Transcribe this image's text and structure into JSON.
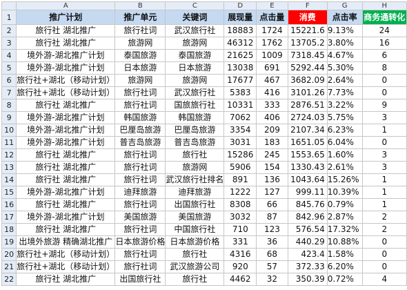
{
  "columns": [
    "A",
    "B",
    "C",
    "D",
    "E",
    "F",
    "G",
    "H"
  ],
  "header": [
    "推广计划",
    "推广单元",
    "关键词",
    "展现量",
    "点击量",
    "消费",
    "点击率",
    "商务通转化"
  ],
  "header_colors": {
    "default": "#c5d9f1",
    "消费": "#ff0000",
    "商务通转化": "#00b050",
    "special_text": "#ffffff"
  },
  "rows": [
    [
      "旅行社 湖北推广",
      "旅行社词",
      "武汉旅行社",
      "18883",
      "1724",
      "15221.6",
      "9.13%",
      "24"
    ],
    [
      "旅行社 湖北推广",
      "旅游网",
      "旅游网",
      "46312",
      "1762",
      "13705.2",
      "3.80%",
      "16"
    ],
    [
      "境外游-湖北推广计划",
      "泰国旅游",
      "泰国旅游",
      "21625",
      "1009",
      "7318.45",
      "4.67%",
      "6"
    ],
    [
      "境外游-湖北推广计划",
      "日本旅游",
      "日本旅游",
      "13038",
      "691",
      "5292.44",
      "5.30%",
      "8"
    ],
    [
      "旅行社+湖北（移动计划）",
      "旅游网",
      "旅游网",
      "17677",
      "467",
      "3682.09",
      "2.64%",
      "0"
    ],
    [
      "旅行社+湖北（移动计划）",
      "旅行社词",
      "武汉旅行社",
      "5383",
      "416",
      "3101.26",
      "7.73%",
      "0"
    ],
    [
      "旅行社 湖北推广",
      "旅行社词",
      "国旅旅行社",
      "10331",
      "333",
      "2876.51",
      "3.22%",
      "9"
    ],
    [
      "境外游-湖北推广计划",
      "韩国旅游",
      "韩国旅游",
      "7062",
      "406",
      "2724.03",
      "5.75%",
      "3"
    ],
    [
      "境外游-湖北推广计划",
      "巴厘岛旅游",
      "巴厘岛旅游",
      "3354",
      "209",
      "2107.34",
      "6.23%",
      "1"
    ],
    [
      "境外游-湖北推广计划",
      "普吉岛旅游",
      "普吉岛旅游",
      "3031",
      "183",
      "1651.05",
      "6.04%",
      "0"
    ],
    [
      "旅行社 湖北推广",
      "旅行社词",
      "旅行社",
      "15286",
      "245",
      "1553.65",
      "1.60%",
      "3"
    ],
    [
      "旅行社 湖北推广",
      "旅行社词",
      "旅游网",
      "5906",
      "154",
      "1330.43",
      "2.61%",
      "3"
    ],
    [
      "旅行社 湖北推广",
      "旅行社词",
      "武汉旅行社排名",
      "891",
      "136",
      "1043.64",
      "15.26%",
      "1"
    ],
    [
      "境外游-湖北推广计划",
      "迪拜旅游",
      "迪拜旅游",
      "1222",
      "127",
      "999.11",
      "10.39%",
      "1"
    ],
    [
      "旅行社 湖北推广",
      "旅行社词",
      "出国旅行社",
      "8308",
      "66",
      "845.76",
      "0.79%",
      "1"
    ],
    [
      "境外游-湖北推广计划",
      "美国旅游",
      "美国旅游",
      "3032",
      "87",
      "842.96",
      "2.87%",
      "2"
    ],
    [
      "旅行社 湖北推广",
      "旅行社词",
      "中国旅行社",
      "710",
      "123",
      "576.54",
      "17.32%",
      "2"
    ],
    [
      "出境外旅游 精确湖北推广",
      "日本旅游价格",
      "日本旅游价格",
      "331",
      "36",
      "440.29",
      "10.88%",
      "0"
    ],
    [
      "旅行社+湖北（移动计划）",
      "旅行社词",
      "旅行社",
      "4316",
      "68",
      "423.4",
      "1.58%",
      "0"
    ],
    [
      "旅行社+湖北（移动计划）",
      "旅行社词",
      "武汉旅游公司",
      "920",
      "57",
      "372.33",
      "6.20%",
      "0"
    ],
    [
      "旅行社 湖北推广",
      "出国旅行社",
      "旅行社",
      "4462",
      "32",
      "350.39",
      "0.72%",
      "4"
    ]
  ]
}
